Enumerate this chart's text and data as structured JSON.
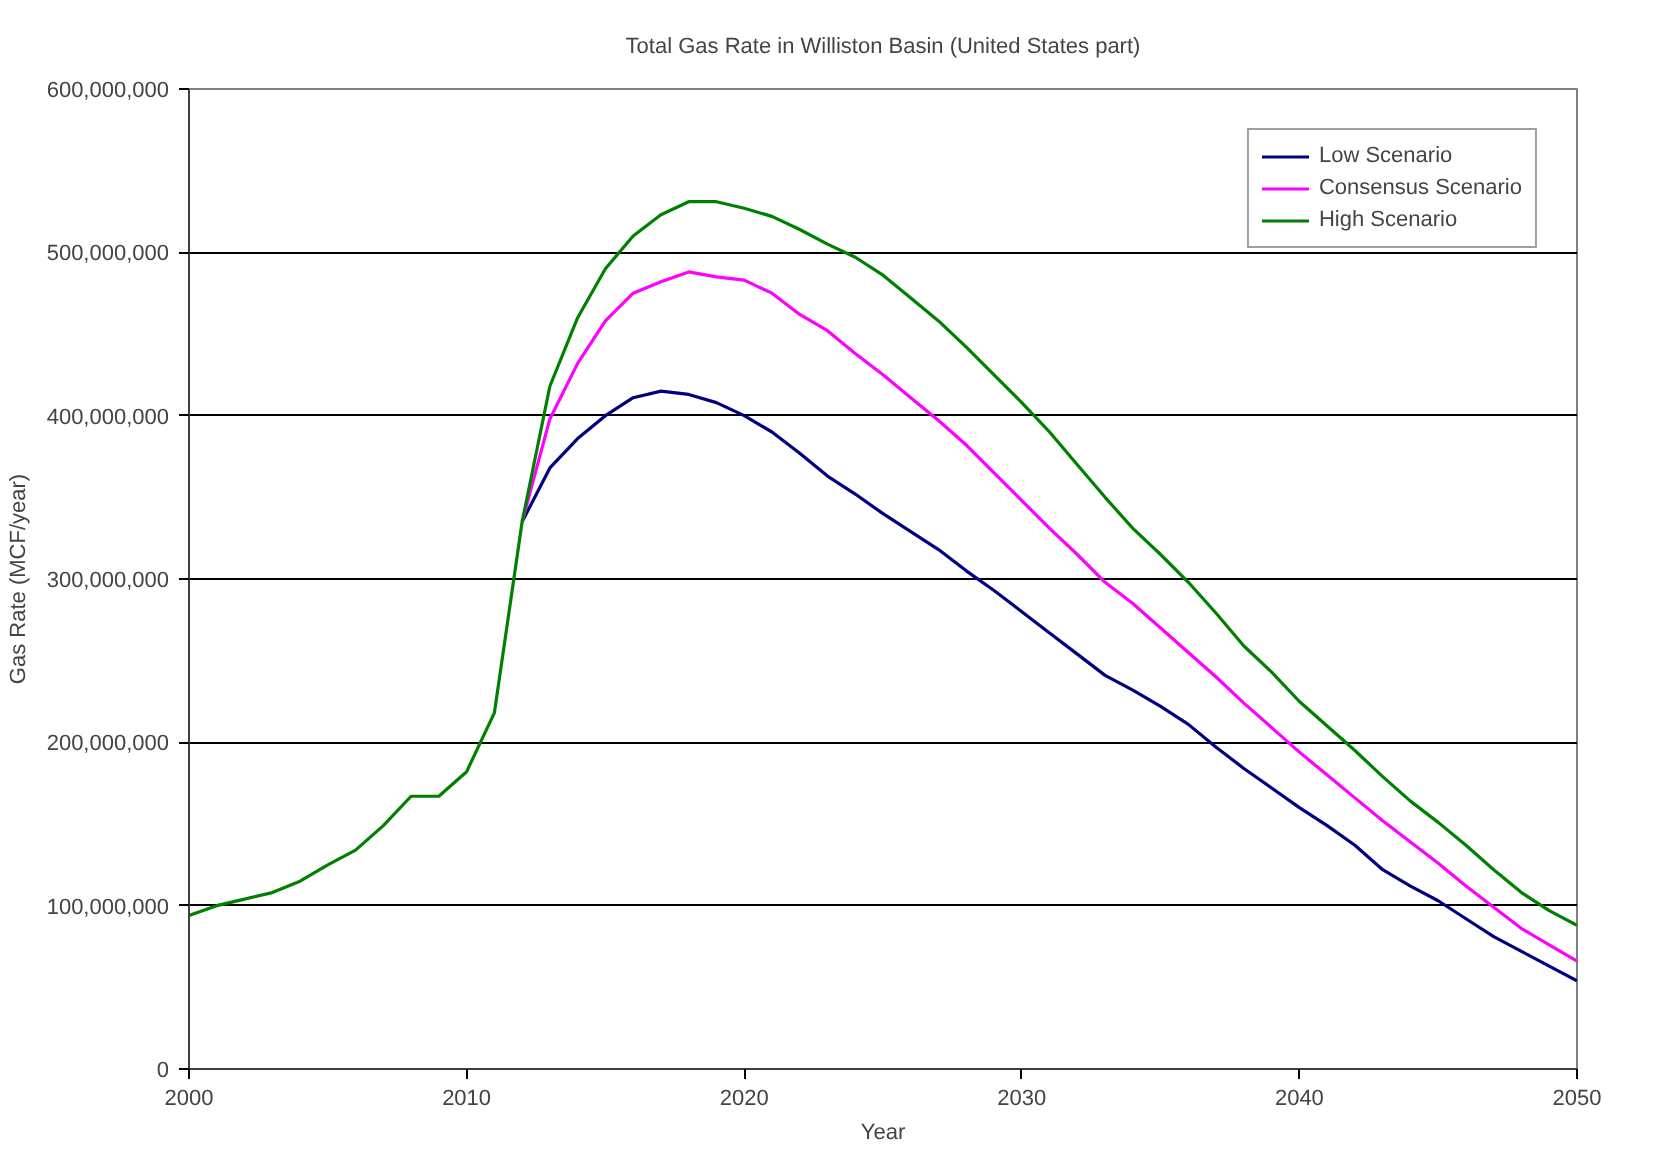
{
  "chart_data": {
    "type": "line",
    "title": "Total Gas Rate in Williston Basin (United States part)",
    "xlabel": "Year",
    "ylabel": "Gas Rate (MCF/year)",
    "x": [
      2000,
      2001,
      2002,
      2003,
      2004,
      2005,
      2006,
      2007,
      2008,
      2009,
      2010,
      2011,
      2012,
      2013,
      2014,
      2015,
      2016,
      2017,
      2018,
      2019,
      2020,
      2021,
      2022,
      2023,
      2024,
      2025,
      2026,
      2027,
      2028,
      2029,
      2030,
      2031,
      2032,
      2033,
      2034,
      2035,
      2036,
      2037,
      2038,
      2039,
      2040,
      2041,
      2042,
      2043,
      2044,
      2045,
      2046,
      2047,
      2048,
      2049,
      2050
    ],
    "series": [
      {
        "name": "Low Scenario",
        "color": "#000080",
        "values": [
          null,
          null,
          null,
          null,
          null,
          null,
          null,
          null,
          null,
          null,
          null,
          null,
          335000000,
          368000000,
          386000000,
          400000000,
          411000000,
          415000000,
          413000000,
          408000000,
          400000000,
          390000000,
          377000000,
          363000000,
          352000000,
          340000000,
          329000000,
          318000000,
          305000000,
          293000000,
          280000000,
          267000000,
          254000000,
          241000000,
          232000000,
          222000000,
          211000000,
          197000000,
          184000000,
          172000000,
          160000000,
          149000000,
          137000000,
          122000000,
          112000000,
          103000000,
          92000000,
          81000000,
          72000000,
          63000000,
          54000000
        ]
      },
      {
        "name": "Consensus Scenario",
        "color": "#ff00ff",
        "values": [
          null,
          null,
          null,
          null,
          null,
          null,
          null,
          null,
          null,
          null,
          null,
          null,
          335000000,
          398000000,
          432000000,
          458000000,
          475000000,
          482000000,
          488000000,
          485000000,
          483000000,
          475000000,
          462000000,
          452000000,
          438000000,
          425000000,
          411000000,
          397000000,
          382000000,
          365000000,
          348000000,
          331000000,
          315000000,
          298000000,
          285000000,
          270000000,
          255000000,
          240000000,
          224000000,
          209000000,
          194000000,
          180000000,
          166000000,
          152000000,
          139000000,
          126000000,
          112000000,
          99000000,
          86000000,
          76000000,
          66000000
        ]
      },
      {
        "name": "High Scenario",
        "color": "#008000",
        "values": [
          94000000,
          100000000,
          104000000,
          108000000,
          115000000,
          125000000,
          134000000,
          149000000,
          167000000,
          167000000,
          182000000,
          218000000,
          335000000,
          418000000,
          460000000,
          490000000,
          510000000,
          523000000,
          531000000,
          531000000,
          527000000,
          522000000,
          514000000,
          505000000,
          497000000,
          486000000,
          472000000,
          458000000,
          442000000,
          425000000,
          408000000,
          390000000,
          370000000,
          350000000,
          331000000,
          315000000,
          298000000,
          279000000,
          259000000,
          243000000,
          225000000,
          210000000,
          195000000,
          179000000,
          164000000,
          151000000,
          137000000,
          122000000,
          108000000,
          97000000,
          88000000
        ]
      }
    ],
    "xlim": [
      2000,
      2050
    ],
    "xticks": [
      2000,
      2010,
      2020,
      2030,
      2040,
      2050
    ],
    "ylim": [
      0,
      600000000
    ],
    "yticks": [
      {
        "value": 0,
        "label": "0"
      },
      {
        "value": 100000000,
        "label": "100,000,000"
      },
      {
        "value": 200000000,
        "label": "200,000,000"
      },
      {
        "value": 300000000,
        "label": "300,000,000"
      },
      {
        "value": 400000000,
        "label": "400,000,000"
      },
      {
        "value": 500000000,
        "label": "500,000,000"
      },
      {
        "value": 600000000,
        "label": "600,000,000"
      }
    ],
    "grid": "y",
    "legend": "top right",
    "marker": "none",
    "line_style": "solid"
  }
}
